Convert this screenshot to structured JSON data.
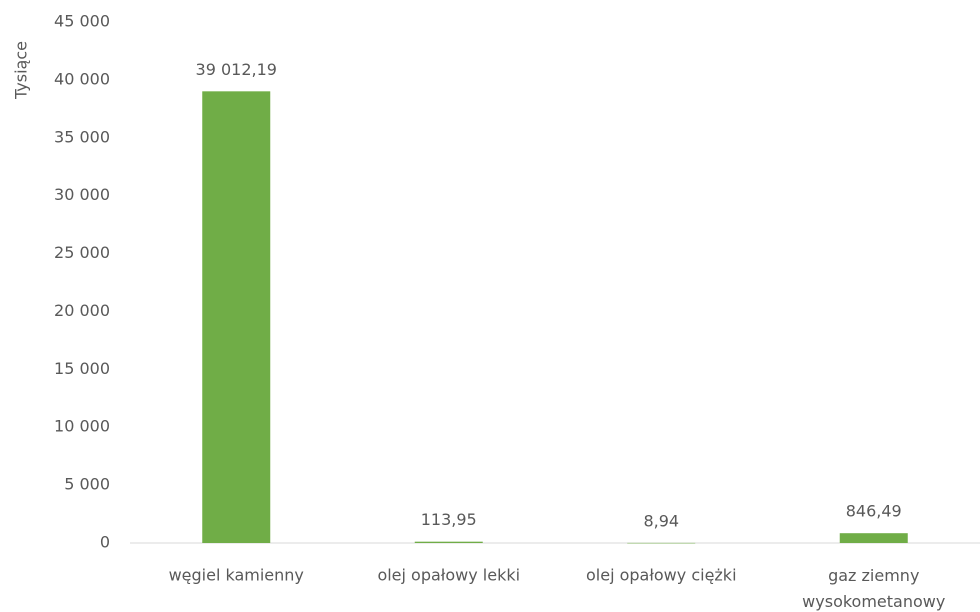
{
  "chart_data": {
    "type": "bar",
    "y_label": "Tysiące",
    "categories": [
      "węgiel kamienny",
      "olej opałowy lekki",
      "olej opałowy ciężki",
      "gaz ziemny wysokometanowy"
    ],
    "values": [
      39012.19,
      113.95,
      8.94,
      846.49
    ],
    "value_labels": [
      "39 012,19",
      "113,95",
      "8,94",
      "846,49"
    ],
    "color": "#70ad47",
    "ylim": [
      0,
      45000
    ],
    "yticks": [
      0,
      {
        "value": 5000,
        "label": "5 000"
      },
      {
        "value": 10000,
        "label": "10 000"
      },
      {
        "value": 15000,
        "label": "15 000"
      },
      {
        "value": 20000,
        "label": "20 000"
      },
      {
        "value": 25000,
        "label": "25 000"
      },
      {
        "value": 30000,
        "label": "30 000"
      },
      {
        "value": 35000,
        "label": "35 000"
      },
      {
        "value": 40000,
        "label": "40 000"
      },
      {
        "value": 45000,
        "label": "45 000"
      }
    ],
    "grid": false
  }
}
